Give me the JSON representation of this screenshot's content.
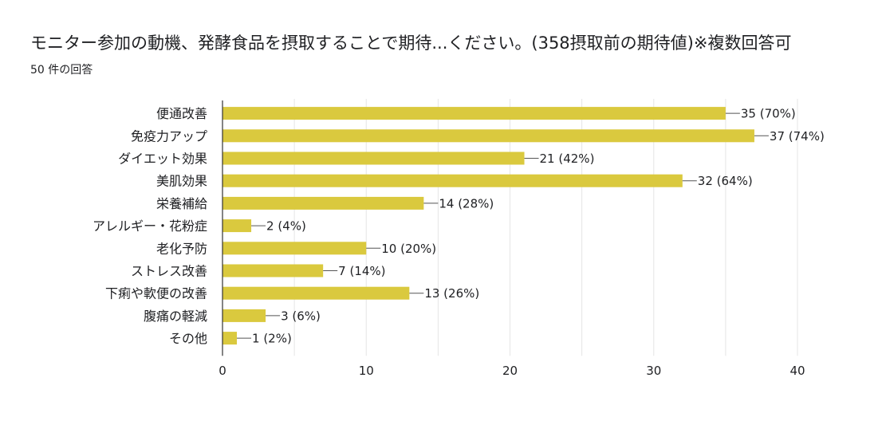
{
  "title": "モニター参加の動機、発酵食品を摂取することで期待...ください。(358摂取前の期待値)※複数回答可",
  "subtitle": "50 件の回答",
  "colors": {
    "bar": "#dac93e",
    "grid": "#e5e5e5",
    "axis": "#333333",
    "text": "#202124"
  },
  "chart_data": {
    "type": "bar",
    "orientation": "horizontal",
    "categories": [
      "便通改善",
      "免疫力アップ",
      "ダイエット効果",
      "美肌効果",
      "栄養補給",
      "アレルギー・花粉症",
      "老化予防",
      "ストレス改善",
      "下痢や軟便の改善",
      "腹痛の軽減",
      "その他"
    ],
    "values": [
      35,
      37,
      21,
      32,
      14,
      2,
      10,
      7,
      13,
      3,
      1
    ],
    "data_labels": [
      "35 (70%)",
      "37 (74%)",
      "21 (42%)",
      "32 (64%)",
      "14 (28%)",
      "2 (4%)",
      "10 (20%)",
      "7 (14%)",
      "13 (26%)",
      "3 (6%)",
      "1 (2%)"
    ],
    "xlim": [
      0,
      40
    ],
    "xticks": [
      0,
      10,
      20,
      30,
      40
    ],
    "grid": true,
    "legend": "none"
  }
}
